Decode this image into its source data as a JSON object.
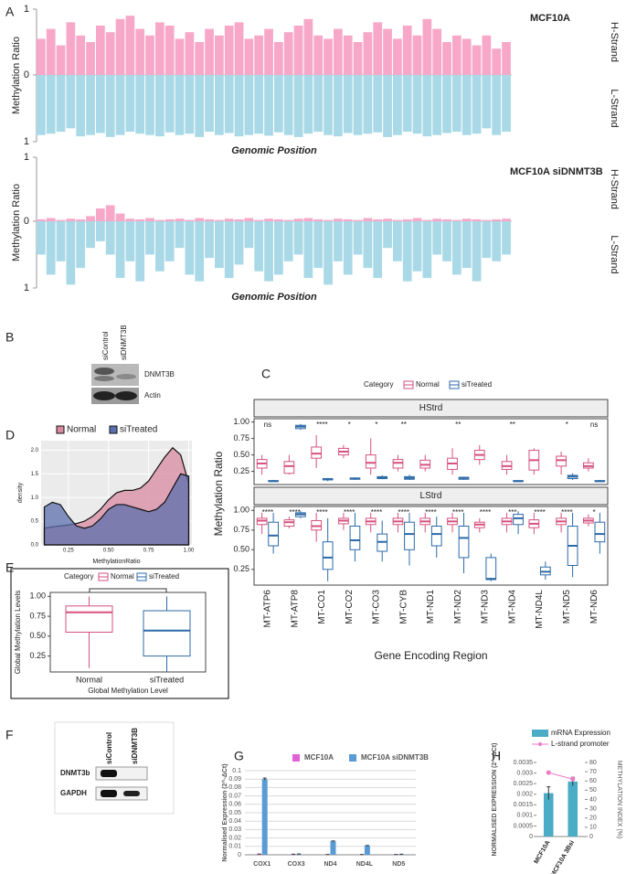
{
  "panel_labels": [
    "A",
    "B",
    "C",
    "D",
    "E",
    "F",
    "G",
    "H"
  ],
  "blots": [
    {
      "lanes": [
        "siControl",
        "siDNMT3B"
      ],
      "bands": [
        "DNMT3B",
        "Actin"
      ]
    },
    {
      "lanes": [
        "siControl",
        "siDNMT3B"
      ],
      "bands": [
        "DNMT3b",
        "GAPDH"
      ]
    }
  ],
  "chart_data": [
    {
      "type": "mirror",
      "title": "MCF10A",
      "ylabel": "Methylation Ratio",
      "xlabel": "Genomic Position",
      "ylim": [
        0,
        1
      ],
      "yticks": [
        0,
        1
      ],
      "y2lim": [
        0,
        1
      ],
      "y2ticks": [
        1
      ],
      "series": [
        {
          "name": "H-Strand",
          "color": "#f7a8c9",
          "values": [
            0.55,
            0.7,
            0.45,
            0.8,
            0.6,
            0.5,
            0.75,
            0.65,
            0.85,
            0.9,
            0.7,
            0.6,
            0.8,
            0.75,
            0.55,
            0.65,
            0.5,
            0.7,
            0.6,
            0.75,
            0.8,
            0.55,
            0.6,
            0.7,
            0.5,
            0.65,
            0.75,
            0.85,
            0.6,
            0.55,
            0.7,
            0.6,
            0.5,
            0.65,
            0.8,
            0.7,
            0.55,
            0.75,
            0.6,
            0.85,
            0.7,
            0.5,
            0.6,
            0.55,
            0.45,
            0.6,
            0.4,
            0.5
          ]
        },
        {
          "name": "L-Strand",
          "color": "#a9d9e6",
          "axis": "y2",
          "values": [
            0.9,
            0.88,
            0.85,
            0.8,
            0.92,
            0.9,
            0.87,
            0.93,
            0.9,
            0.85,
            0.88,
            0.9,
            0.92,
            0.86,
            0.9,
            0.88,
            0.93,
            0.85,
            0.9,
            0.87,
            0.92,
            0.9,
            0.88,
            0.91,
            0.86,
            0.9,
            0.93,
            0.88,
            0.85,
            0.9,
            0.92,
            0.87,
            0.9,
            0.88,
            0.86,
            0.93,
            0.9,
            0.85,
            0.88,
            0.92,
            0.9,
            0.87,
            0.85,
            0.9,
            0.88,
            0.8,
            0.9,
            0.85
          ]
        }
      ]
    },
    {
      "type": "mirror",
      "title": "MCF10A siDNMT3B",
      "ylabel": "Methylation Ratio",
      "xlabel": "Genomic Position",
      "ylim": [
        0,
        1
      ],
      "yticks": [
        0,
        1
      ],
      "y2lim": [
        0,
        1
      ],
      "y2ticks": [
        1
      ],
      "series": [
        {
          "name": "H-Strand",
          "color": "#f7a8c9",
          "values": [
            0.03,
            0.05,
            0.02,
            0.04,
            0.03,
            0.08,
            0.2,
            0.25,
            0.12,
            0.04,
            0.03,
            0.05,
            0.02,
            0.03,
            0.04,
            0.02,
            0.05,
            0.03,
            0.02,
            0.04,
            0.03,
            0.05,
            0.02,
            0.04,
            0.03,
            0.02,
            0.04,
            0.05,
            0.03,
            0.02,
            0.04,
            0.03,
            0.02,
            0.05,
            0.03,
            0.04,
            0.02,
            0.03,
            0.05,
            0.02,
            0.04,
            0.03,
            0.02,
            0.04,
            0.03,
            0.02,
            0.03,
            0.04
          ]
        },
        {
          "name": "L-Strand",
          "color": "#a9d9e6",
          "axis": "y2",
          "values": [
            0.5,
            0.8,
            0.6,
            0.95,
            0.7,
            0.4,
            0.3,
            0.5,
            0.85,
            0.6,
            0.9,
            0.5,
            0.75,
            0.6,
            0.4,
            0.8,
            0.9,
            0.55,
            0.7,
            0.85,
            0.65,
            0.4,
            0.75,
            0.9,
            0.8,
            0.6,
            0.5,
            0.85,
            0.7,
            0.95,
            0.6,
            0.8,
            0.5,
            0.7,
            0.85,
            0.4,
            0.6,
            0.9,
            0.75,
            0.85,
            0.5,
            0.6,
            0.8,
            0.7,
            0.9,
            0.55,
            0.6,
            0.5
          ]
        }
      ]
    },
    {
      "type": "box",
      "legend_title": "Category",
      "ylabel": "Methylation Ratio",
      "xlabel": "Gene Encoding Region",
      "facets": [
        "HStrd",
        "LStrd"
      ],
      "categories": [
        "MT-ATP6",
        "MT-ATP8",
        "MT-CO1",
        "MT-CO2",
        "MT-CO3",
        "MT-CYB",
        "MT-ND1",
        "MT-ND2",
        "MT-ND3",
        "MT-ND4",
        "MT-ND4L",
        "MT-ND5",
        "MT-ND6"
      ],
      "ylim": [
        0.05,
        1.05
      ],
      "yticks": [
        0.25,
        {
          "value": 0.5,
          "label": "0.50"
        },
        0.75,
        {
          "value": 1,
          "label": "1.00"
        }
      ],
      "series": [
        {
          "name": "Normal",
          "color": "#d6517d",
          "values": [
            [
              [
                0.2,
                0.3,
                0.37,
                0.43,
                0.5
              ],
              [
                0.2,
                0.22,
                0.33,
                0.4,
                0.5
              ],
              [
                0.3,
                0.45,
                0.52,
                0.62,
                0.8
              ],
              [
                0.45,
                0.5,
                0.55,
                0.6,
                0.65
              ],
              [
                0.2,
                0.3,
                0.38,
                0.5,
                0.75
              ],
              [
                0.25,
                0.3,
                0.38,
                0.43,
                0.5
              ],
              [
                0.25,
                0.3,
                0.35,
                0.42,
                0.5
              ],
              [
                0.2,
                0.28,
                0.37,
                0.45,
                0.6
              ],
              [
                0.35,
                0.43,
                0.5,
                0.57,
                0.65
              ],
              [
                0.2,
                0.28,
                0.33,
                0.4,
                0.5
              ],
              [
                0.2,
                0.27,
                0.42,
                0.57,
                0.6
              ],
              [
                0.2,
                0.33,
                0.42,
                0.48,
                0.55
              ],
              [
                0.25,
                0.3,
                0.33,
                0.38,
                0.45
              ]
            ],
            [
              [
                0.7,
                0.82,
                0.87,
                0.9,
                0.97
              ],
              [
                0.77,
                0.8,
                0.85,
                0.88,
                0.92
              ],
              [
                0.6,
                0.75,
                0.8,
                0.87,
                0.97
              ],
              [
                0.75,
                0.83,
                0.87,
                0.9,
                0.97
              ],
              [
                0.72,
                0.82,
                0.86,
                0.9,
                0.97
              ],
              [
                0.72,
                0.82,
                0.86,
                0.9,
                0.97
              ],
              [
                0.72,
                0.82,
                0.86,
                0.9,
                0.97
              ],
              [
                0.72,
                0.82,
                0.86,
                0.9,
                0.97
              ],
              [
                0.72,
                0.78,
                0.82,
                0.85,
                0.9
              ],
              [
                0.72,
                0.82,
                0.86,
                0.9,
                0.97
              ],
              [
                0.7,
                0.78,
                0.83,
                0.88,
                0.97
              ],
              [
                0.72,
                0.82,
                0.86,
                0.9,
                0.97
              ],
              [
                0.8,
                0.84,
                0.87,
                0.9,
                0.95
              ]
            ]
          ]
        },
        {
          "name": "siTreated",
          "color": "#2c6aa8",
          "values": [
            [
              [
                0.09,
                0.1,
                0.1,
                0.11,
                0.12
              ],
              [
                0.88,
                0.9,
                0.93,
                0.95,
                0.97
              ],
              [
                0.1,
                0.12,
                0.13,
                0.14,
                0.15
              ],
              [
                0.12,
                0.13,
                0.14,
                0.15,
                0.16
              ],
              [
                0.13,
                0.14,
                0.16,
                0.17,
                0.19
              ],
              [
                0.12,
                0.13,
                0.15,
                0.17,
                0.2
              ],
              null,
              [
                0.12,
                0.13,
                0.15,
                0.16,
                0.17
              ],
              null,
              [
                0.09,
                0.1,
                0.1,
                0.11,
                0.12
              ],
              null,
              [
                0.12,
                0.14,
                0.17,
                0.19,
                0.22
              ],
              [
                0.09,
                0.1,
                0.1,
                0.11,
                0.12
              ]
            ],
            [
              [
                0.45,
                0.55,
                0.68,
                0.85,
                0.97
              ],
              [
                0.9,
                0.92,
                0.95,
                0.97,
                0.99
              ],
              [
                0.1,
                0.25,
                0.4,
                0.6,
                0.9
              ],
              [
                0.35,
                0.5,
                0.62,
                0.8,
                0.97
              ],
              [
                0.35,
                0.48,
                0.6,
                0.7,
                0.87
              ],
              [
                0.3,
                0.5,
                0.7,
                0.85,
                0.97
              ],
              [
                0.4,
                0.55,
                0.7,
                0.8,
                0.92
              ],
              [
                0.2,
                0.4,
                0.65,
                0.8,
                0.97
              ],
              [
                0.1,
                0.12,
                0.13,
                0.4,
                0.45
              ],
              [
                0.7,
                0.82,
                0.9,
                0.95,
                0.99
              ],
              [
                0.12,
                0.18,
                0.22,
                0.28,
                0.35
              ],
              [
                0.15,
                0.3,
                0.55,
                0.8,
                0.97
              ],
              [
                0.45,
                0.6,
                0.7,
                0.85,
                0.97
              ]
            ]
          ]
        }
      ],
      "significance": [
        [
          "ns",
          null,
          "****",
          "*",
          "*",
          "**",
          null,
          "**",
          null,
          "**",
          null,
          "*",
          "ns"
        ],
        [
          "****",
          "****",
          "****",
          "****",
          "****",
          "****",
          "****",
          "****",
          "****",
          "***",
          "****",
          "****",
          "*"
        ]
      ]
    },
    {
      "type": "area",
      "xlabel": "MethylationRatio",
      "ylabel": "density",
      "x": [
        0.1,
        0.15,
        0.2,
        0.25,
        0.3,
        0.35,
        0.4,
        0.45,
        0.5,
        0.55,
        0.6,
        0.65,
        0.7,
        0.75,
        0.8,
        0.85,
        0.9,
        0.95,
        1
      ],
      "xlim": [
        0.08,
        1.02
      ],
      "xticks": [
        0.25,
        {
          "value": 0.5,
          "label": "0.50"
        },
        0.75,
        {
          "value": 1,
          "label": "1.00"
        }
      ],
      "ylim": [
        0,
        2.2
      ],
      "yticks": [
        {
          "value": 0,
          "label": "0.0"
        },
        0.5,
        {
          "value": 1,
          "label": "1.0"
        },
        1.5,
        {
          "value": 2,
          "label": "2.0"
        }
      ],
      "grid": true,
      "series": [
        {
          "name": "Normal",
          "color": "#d98aa3",
          "values": [
            0.35,
            0.38,
            0.4,
            0.42,
            0.45,
            0.5,
            0.6,
            0.75,
            0.95,
            1.1,
            1.15,
            1.15,
            1.2,
            1.35,
            1.6,
            1.85,
            2.05,
            1.9,
            1.3
          ]
        },
        {
          "name": "siTreated",
          "color": "#5b6fae",
          "values": [
            0.8,
            0.9,
            0.85,
            0.6,
            0.4,
            0.35,
            0.4,
            0.55,
            0.75,
            0.85,
            0.85,
            0.8,
            0.75,
            0.7,
            0.75,
            0.9,
            1.2,
            1.5,
            1.45
          ]
        }
      ]
    },
    {
      "type": "box",
      "legend_title": "Category",
      "ylabel": "Global Methylation Levels",
      "xlabel": "Global Methylation Level",
      "categories": [
        "Normal",
        "siTreated"
      ],
      "ylim": [
        0.05,
        1.05
      ],
      "yticks": [
        0.25,
        {
          "value": 0.5,
          "label": "0.50"
        },
        0.75,
        {
          "value": 1,
          "label": "1.00"
        }
      ],
      "series": [
        {
          "name": "Normal",
          "color": "#d6517d",
          "values": [
            [
              0.1,
              0.55,
              0.8,
              0.88,
              1
            ],
            null
          ]
        },
        {
          "name": "siTreated",
          "color": "#2c6aa8",
          "values": [
            null,
            [
              0.05,
              0.25,
              0.57,
              0.82,
              1
            ]
          ]
        }
      ]
    },
    {
      "type": "bar",
      "ylabel": "Normalised Expression (2^-ΔCt)",
      "categories": [
        "COX1",
        "COX3",
        "ND4",
        "ND4L",
        "ND5"
      ],
      "ylim": [
        0,
        0.1
      ],
      "yticks": [
        0,
        0.01,
        0.02,
        0.03,
        0.04,
        0.05,
        0.06,
        0.07,
        0.08,
        0.09,
        0.1
      ],
      "grid": true,
      "series": [
        {
          "name": "MCF10A",
          "color": "#e35fd6",
          "values": [
            0.0008,
            0.0006,
            0.0003,
            0.0003,
            0.0003
          ],
          "errors": [
            0.0001,
            0.0001,
            0.0001,
            0.0001,
            0.0001
          ]
        },
        {
          "name": "MCF10A siDNMT3B",
          "color": "#5a9bd5",
          "values": [
            0.09,
            0.0008,
            0.0162,
            0.0108,
            0.0005
          ],
          "errors": [
            0.0012,
            0.0002,
            0.0003,
            0.0003,
            0.0002
          ]
        }
      ]
    },
    {
      "type": "bar",
      "ylabel": "NORMALISED EXPRESSION (2^-ΔCt)",
      "y2label": "METHYLATION INDEX (%)",
      "categories": [
        "MCF10A",
        "MCF10A 3Bsi"
      ],
      "ylim": [
        0,
        0.0035
      ],
      "yticks": [
        0,
        0.0005,
        0.001,
        0.0015,
        0.002,
        0.0025,
        0.003,
        0.0035
      ],
      "y2lim": [
        0,
        80
      ],
      "y2ticks": [
        0,
        10,
        20,
        30,
        40,
        50,
        60,
        70,
        80
      ],
      "series": [
        {
          "name": "mRNA Expression",
          "color": "#4bacc6",
          "values": [
            0.00205,
            0.0026
          ],
          "errors": [
            0.0003,
            0.0002
          ]
        },
        {
          "name": "L-strand promoter",
          "type": "line",
          "color": "#f078c8",
          "axis": "y2",
          "values": [
            69,
            62
          ]
        }
      ]
    }
  ]
}
